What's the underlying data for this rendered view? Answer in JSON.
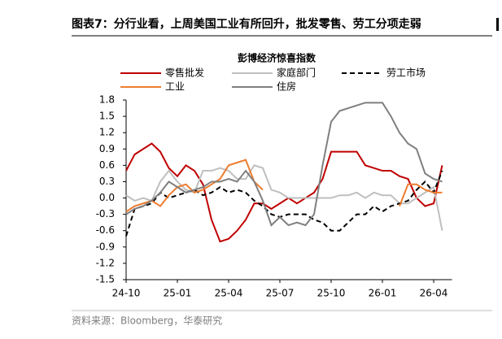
{
  "header": {
    "title": "图表7：分行业看，上周美国工业有所回升，批发零售、劳工分项走弱"
  },
  "chart_data": {
    "type": "line",
    "title": "彭博经济惊喜指数",
    "source": "资料来源：Bloomberg，华泰研究",
    "categories": [
      "24-10",
      null,
      null,
      null,
      null,
      null,
      "25-01",
      null,
      null,
      null,
      null,
      null,
      "25-04",
      null,
      null,
      null,
      null,
      null,
      "25-07",
      null,
      null,
      null,
      null,
      null,
      "25-10",
      null,
      null,
      null,
      null,
      null,
      "26-01",
      null,
      null,
      null,
      null,
      null,
      "26-04",
      null
    ],
    "ylim": [
      -1.5,
      1.8
    ],
    "yticks": [
      -1.5,
      -1.2,
      -0.9,
      -0.6,
      -0.3,
      {
        "value": 0,
        "label": "0.0"
      },
      0.3,
      0.6,
      0.9,
      1.2,
      1.5,
      1.8
    ],
    "series": [
      {
        "name": "零售批发",
        "color": "#c00000",
        "dash": false,
        "values": [
          0.5,
          0.8,
          0.9,
          1.0,
          0.85,
          0.55,
          0.4,
          0.6,
          0.5,
          0.25,
          -0.4,
          -0.8,
          -0.75,
          -0.6,
          -0.4,
          -0.1,
          -0.1,
          -0.2,
          -0.1,
          0.0,
          -0.1,
          0.0,
          0.1,
          0.35,
          0.85,
          0.85,
          0.85,
          0.85,
          0.6,
          0.55,
          0.5,
          0.5,
          0.4,
          0.35,
          0.0,
          -0.15,
          -0.1,
          0.6
        ]
      },
      {
        "name": "家庭部门",
        "color": "#bfbfbf",
        "dash": false,
        "values": [
          0.05,
          -0.05,
          0.0,
          -0.05,
          0.3,
          0.5,
          0.3,
          0.15,
          0.1,
          0.5,
          0.5,
          0.55,
          0.5,
          0.35,
          0.35,
          0.6,
          0.55,
          0.15,
          0.1,
          0.0,
          0.0,
          0.0,
          0.0,
          0.0,
          0.0,
          0.05,
          0.05,
          0.1,
          0.0,
          0.1,
          0.05,
          0.05,
          -0.1,
          -0.1,
          0.0,
          0.1,
          0.2,
          -0.6
        ]
      },
      {
        "name": "劳工市场",
        "color": "#000000",
        "dash": true,
        "values": [
          -0.7,
          -0.2,
          -0.15,
          -0.1,
          0.1,
          0.0,
          0.05,
          0.1,
          0.15,
          0.05,
          0.1,
          0.2,
          0.1,
          0.15,
          0.1,
          -0.05,
          -0.15,
          -0.3,
          -0.35,
          -0.3,
          -0.3,
          -0.3,
          -0.4,
          -0.45,
          -0.6,
          -0.6,
          -0.45,
          -0.3,
          -0.3,
          -0.15,
          -0.25,
          -0.15,
          -0.1,
          -0.05,
          0.15,
          0.3,
          0.1,
          0.5
        ]
      },
      {
        "name": "工业",
        "color": "#ed7d31",
        "dash": false,
        "values": [
          -0.25,
          -0.15,
          -0.1,
          -0.05,
          -0.15,
          0.05,
          0.2,
          0.25,
          0.1,
          0.15,
          0.25,
          0.35,
          0.6,
          0.65,
          0.7,
          0.3,
          0.15,
          null,
          null,
          null,
          null,
          null,
          null,
          null,
          null,
          null,
          null,
          null,
          null,
          null,
          null,
          null,
          -0.15,
          0.25,
          0.25,
          0.15,
          0.1,
          0.1
        ]
      },
      {
        "name": "住房",
        "color": "#7f7f7f",
        "dash": false,
        "values": [
          -0.3,
          -0.2,
          -0.15,
          -0.05,
          0.1,
          0.3,
          0.2,
          0.1,
          0.15,
          0.2,
          0.3,
          0.3,
          0.35,
          0.3,
          0.5,
          0.3,
          -0.05,
          -0.5,
          -0.35,
          -0.5,
          -0.45,
          -0.5,
          -0.3,
          0.6,
          1.4,
          1.6,
          1.65,
          1.7,
          1.75,
          1.75,
          1.75,
          1.5,
          1.2,
          1.0,
          0.9,
          0.45,
          0.35,
          0.3
        ]
      }
    ]
  }
}
